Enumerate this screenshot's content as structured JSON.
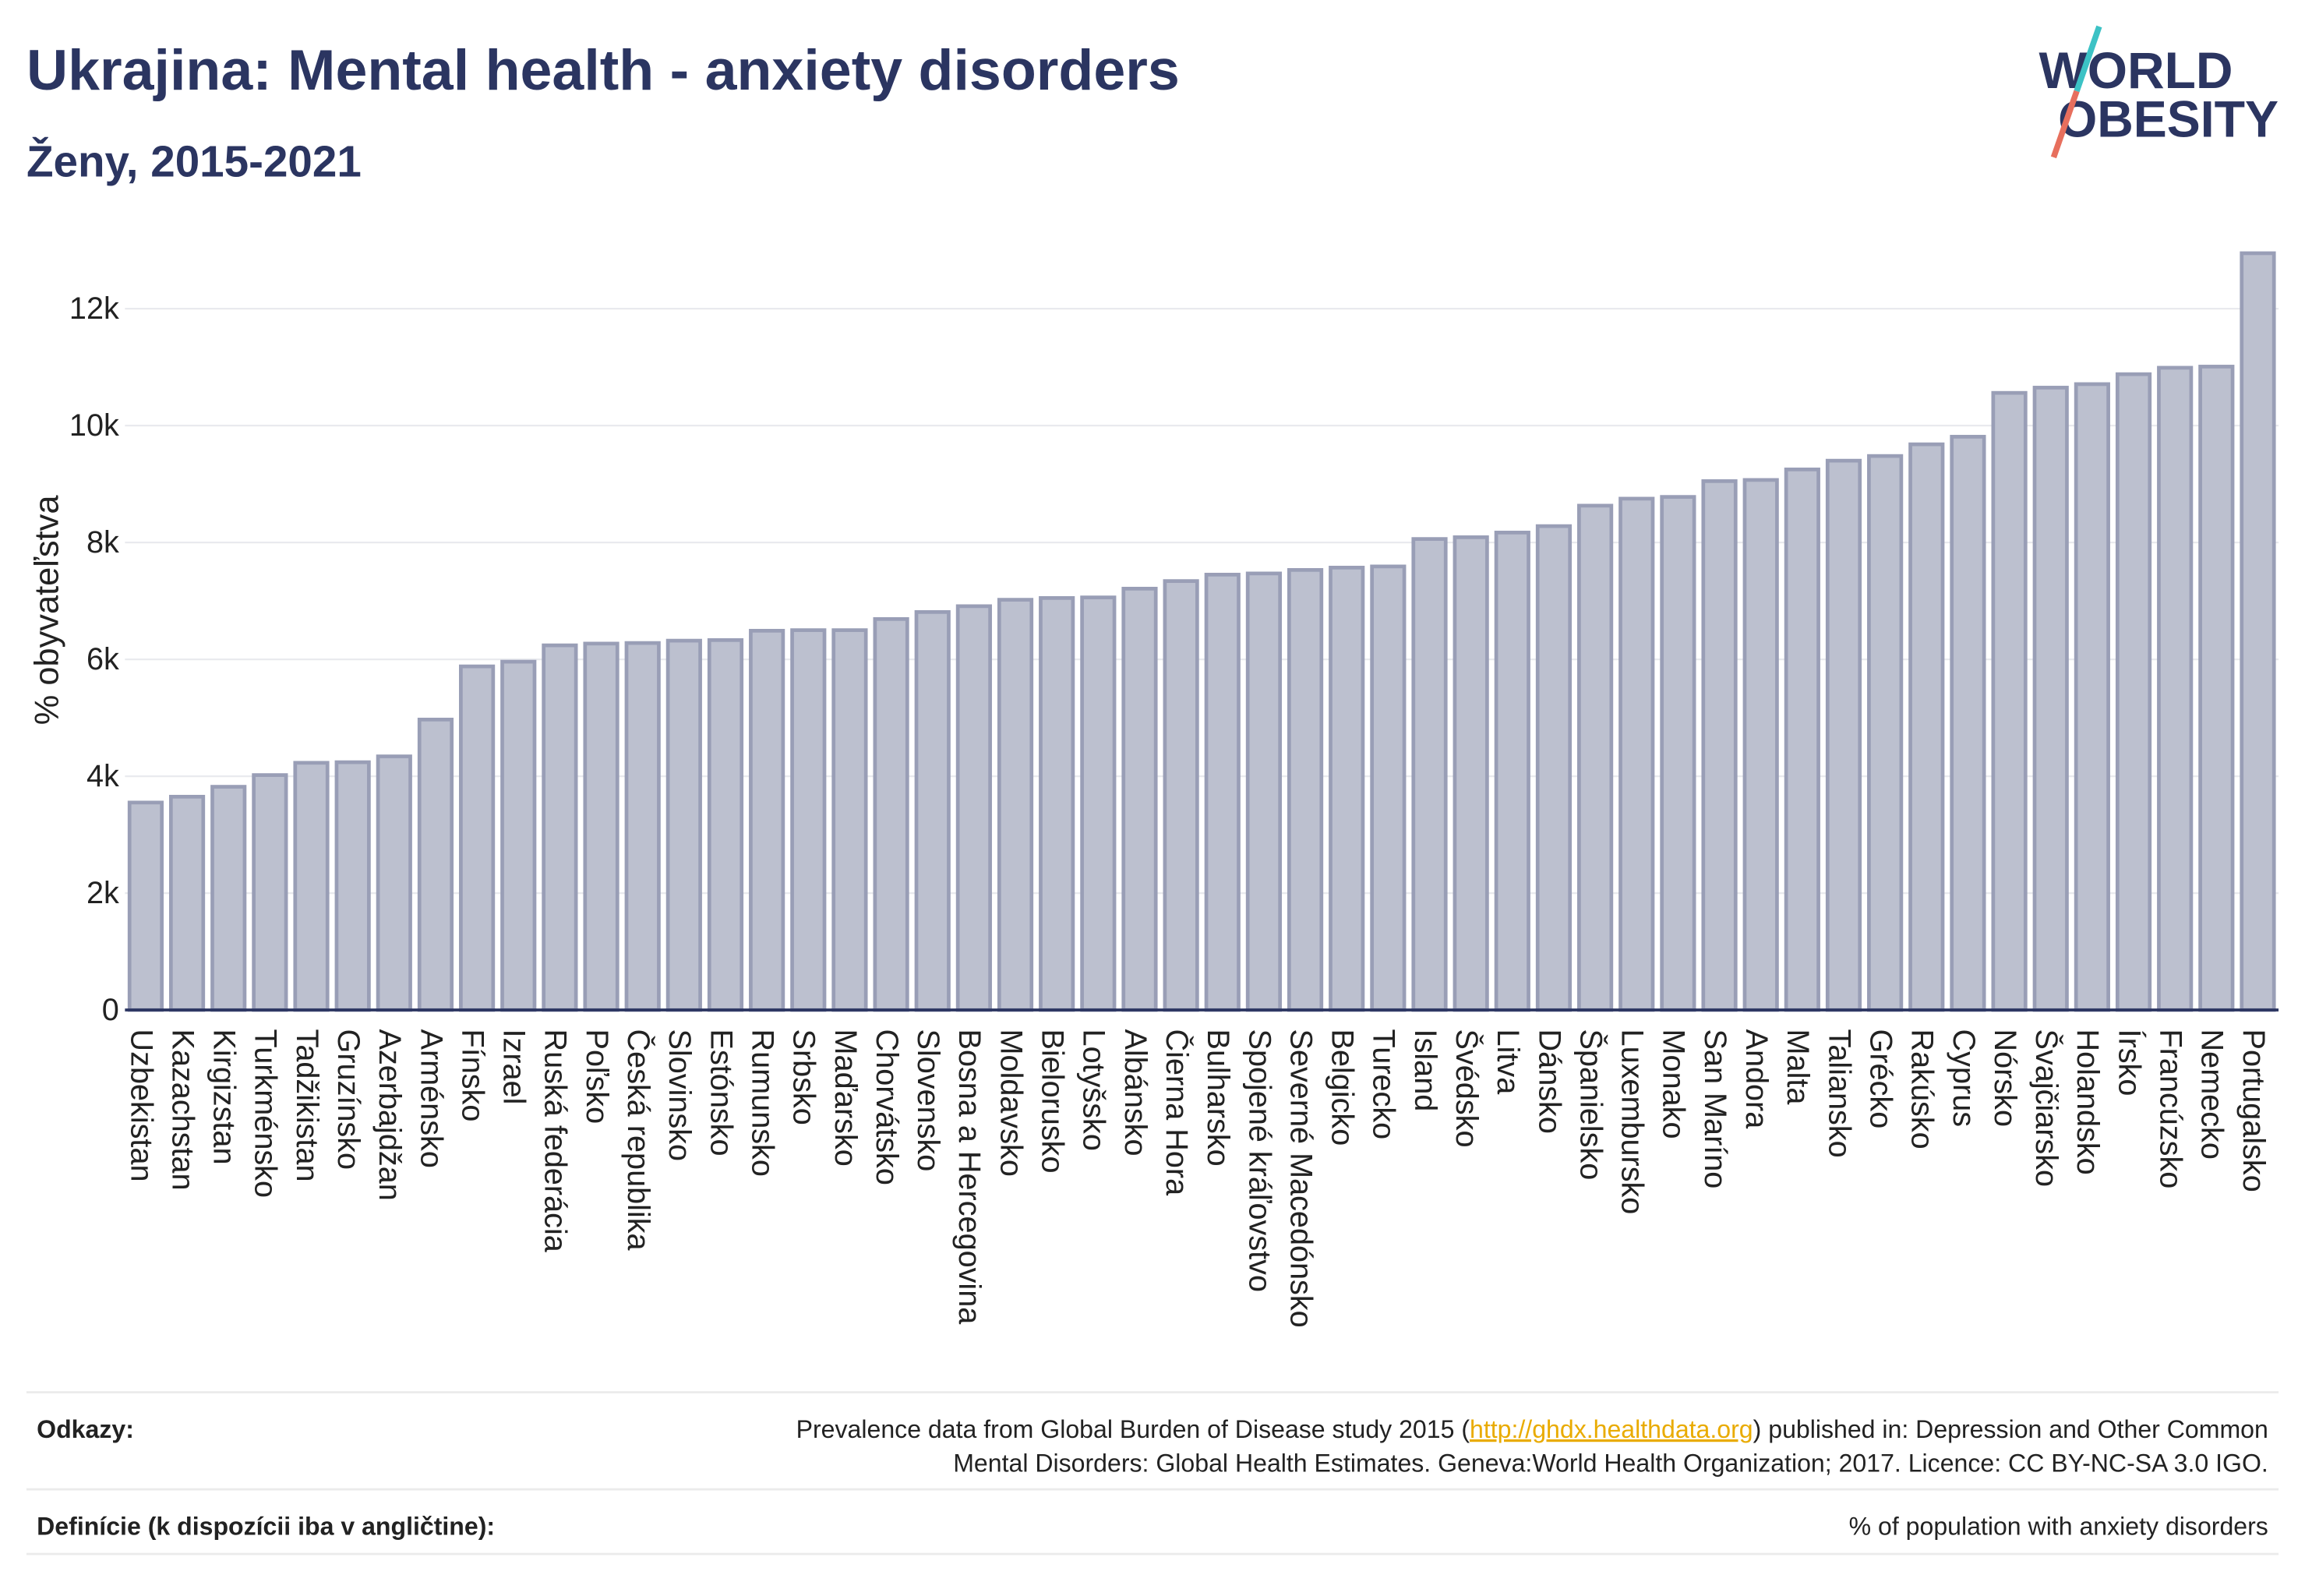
{
  "colors": {
    "title": "#2b3561",
    "text": "#222222",
    "link": "#e9ab00",
    "divider": "#ebebeb",
    "logo_teal": "#3cc2c5",
    "logo_coral": "#e76f5d"
  },
  "logo": {
    "line1": "WORLD",
    "line2": "OBESITY"
  },
  "chart_data": {
    "type": "bar",
    "title": "Ukrajina: Mental health - anxiety disorders",
    "subtitle": "Ženy, 2015-2021",
    "ylabel": "% obyvateľstva",
    "ylim": [
      0,
      13000
    ],
    "yticks": [
      0,
      2000,
      4000,
      6000,
      8000,
      10000,
      12000
    ],
    "ytick_labels": [
      "0",
      "2k",
      "4k",
      "6k",
      "8k",
      "10k",
      "12k"
    ],
    "grid": true,
    "categories": [
      "Uzbekistan",
      "Kazachstan",
      "Kirgizstan",
      "Turkménsko",
      "Tadžikistan",
      "Gruzínsko",
      "Azerbajdžan",
      "Arménsko",
      "Fínsko",
      "Izrael",
      "Ruská federácia",
      "Poľsko",
      "Česká republika",
      "Slovinsko",
      "Estónsko",
      "Rumunsko",
      "Srbsko",
      "Maďarsko",
      "Chorvátsko",
      "Slovensko",
      "Bosna a Hercegovina",
      "Moldavsko",
      "Bielorusko",
      "Lotyšsko",
      "Albánsko",
      "Čierna Hora",
      "Bulharsko",
      "Spojené kráľovstvo",
      "Severné Macedónsko",
      "Belgicko",
      "Turecko",
      "Island",
      "Švédsko",
      "Litva",
      "Dánsko",
      "Španielsko",
      "Luxembursko",
      "Monako",
      "San Maríno",
      "Andora",
      "Malta",
      "Taliansko",
      "Grécko",
      "Rakúsko",
      "Cyprus",
      "Nórsko",
      "Švajčiarsko",
      "Holandsko",
      "Írsko",
      "Francúzsko",
      "Nemecko",
      "Portugalsko"
    ],
    "values": [
      3550,
      3650,
      3820,
      4020,
      4230,
      4240,
      4340,
      4970,
      5880,
      5960,
      6240,
      6270,
      6280,
      6320,
      6330,
      6490,
      6500,
      6500,
      6690,
      6810,
      6910,
      7020,
      7050,
      7060,
      7210,
      7340,
      7450,
      7470,
      7530,
      7570,
      7590,
      8060,
      8090,
      8170,
      8280,
      8630,
      8750,
      8780,
      9050,
      9070,
      9250,
      9400,
      9480,
      9680,
      9810,
      10560,
      10650,
      10710,
      10880,
      10990,
      11010,
      12950
    ],
    "colors": {
      "bar_fill": "#bcc0cf",
      "bar_stroke": "#999eb6",
      "axis": "#2b3561",
      "grid": "#e9eaee"
    }
  },
  "footer": {
    "references_label": "Odkazy:",
    "references_before": "Prevalence data from Global Burden of Disease study 2015 (",
    "references_link": "http://ghdx.healthdata.org",
    "references_after": ") published in: Depression and Other Common",
    "references_line2": "Mental Disorders: Global Health Estimates. Geneva:World Health Organization; 2017. Licence: CC BY-NC-SA 3.0 IGO.",
    "definitions_label": "Definície (k dispozícii iba v angličtine):",
    "definitions_text": "% of population with anxiety disorders"
  }
}
